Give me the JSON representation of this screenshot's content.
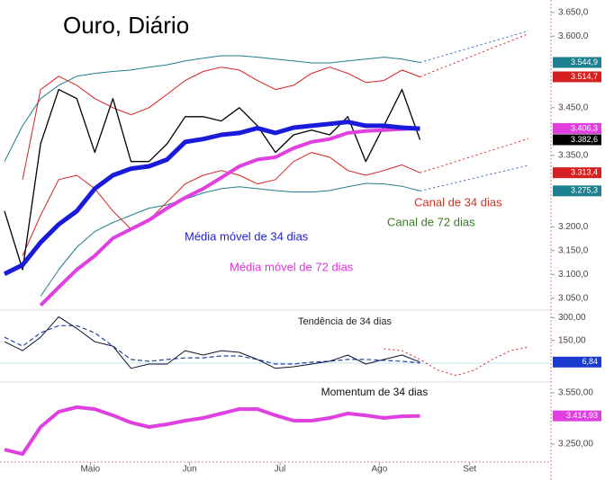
{
  "chart_data": [
    {
      "type": "line",
      "title": "Ouro, Diário",
      "x": [
        0,
        4,
        8,
        12,
        16,
        20,
        24,
        28,
        32,
        36,
        40,
        44,
        48,
        52,
        56,
        60,
        64,
        68,
        72,
        76,
        80,
        84,
        88,
        92,
        96,
        100,
        104,
        108,
        112,
        116
      ],
      "xlim": [
        -1,
        121
      ],
      "ylim": [
        3025,
        3676
      ],
      "yticks": [
        {
          "value": 3650,
          "label": "3.650,0"
        },
        {
          "value": 3600,
          "label": "3.600,0"
        },
        {
          "value": 3450,
          "label": "3.450,0"
        },
        {
          "value": 3350,
          "label": "3.350,0"
        },
        {
          "value": 3200,
          "label": "3.200,0"
        },
        {
          "value": 3150,
          "label": "3.150,0"
        },
        {
          "value": 3100,
          "label": "3.100,0"
        },
        {
          "value": 3050,
          "label": "3.050,0"
        }
      ],
      "series": [
        {
          "color": "#1e7f8e",
          "style": "solid",
          "width": 1,
          "values": [
            3337,
            3412,
            3469,
            3497,
            3516,
            3522,
            3526,
            3529,
            3535,
            3540,
            3548,
            3554,
            3559,
            3559,
            3556,
            3552,
            3548,
            3544,
            3544,
            3548,
            3552,
            3556,
            3552,
            3544.9,
            null,
            null,
            null,
            null,
            null,
            null
          ],
          "last_label": "3.544,9"
        },
        {
          "color": "#1e7f8e",
          "style": "solid",
          "width": 1,
          "values": [
            null,
            null,
            3054,
            3110,
            3157,
            3190,
            3209,
            3224,
            3239,
            3246,
            3258,
            3271,
            3280,
            3284,
            3280,
            3276,
            3273,
            3273,
            3276,
            3284,
            3291,
            3290,
            3285,
            3275.3,
            null,
            null,
            null,
            null,
            null,
            null
          ],
          "last_label": "3.275,3"
        },
        {
          "color": "#d42020",
          "style": "solid",
          "width": 1,
          "values": [
            null,
            3299,
            3488,
            3516,
            3497,
            3469,
            3450,
            3435,
            3450,
            3478,
            3507,
            3526,
            3535,
            3529,
            3507,
            3488,
            3497,
            3522,
            3535,
            3522,
            3503,
            3507,
            3529,
            3514.7,
            null,
            null,
            null,
            null,
            null,
            null
          ],
          "last_label": "3.514,7"
        },
        {
          "color": "#d42020",
          "style": "solid",
          "width": 1,
          "values": [
            null,
            3139,
            3224,
            3299,
            3308,
            3280,
            3233,
            3195,
            3214,
            3252,
            3290,
            3308,
            3318,
            3308,
            3290,
            3299,
            3337,
            3356,
            3346,
            3318,
            3308,
            3318,
            3330,
            3313.4,
            null,
            null,
            null,
            null,
            null,
            null
          ],
          "last_label": "3.313,4"
        },
        {
          "color": "#d42020",
          "style": "dotted",
          "width": 1,
          "values": [
            null,
            null,
            null,
            null,
            null,
            null,
            null,
            null,
            null,
            null,
            null,
            null,
            null,
            null,
            null,
            null,
            null,
            null,
            null,
            null,
            null,
            null,
            null,
            3514.7,
            3530,
            3545,
            3560,
            3575,
            3590,
            3605
          ]
        },
        {
          "color": "#d42020",
          "style": "dotted",
          "width": 1,
          "values": [
            null,
            null,
            null,
            null,
            null,
            null,
            null,
            null,
            null,
            null,
            null,
            null,
            null,
            null,
            null,
            null,
            null,
            null,
            null,
            null,
            null,
            null,
            null,
            3313.4,
            3325,
            3337,
            3349,
            3361,
            3373,
            3385
          ]
        },
        {
          "color": "#3060c0",
          "style": "dotted",
          "width": 1,
          "values": [
            null,
            null,
            null,
            null,
            null,
            null,
            null,
            null,
            null,
            null,
            null,
            null,
            null,
            null,
            null,
            null,
            null,
            null,
            null,
            null,
            null,
            null,
            null,
            3544.9,
            3556,
            3567,
            3578,
            3589,
            3600,
            3611
          ]
        },
        {
          "color": "#3060c0",
          "style": "dotted",
          "width": 1,
          "values": [
            null,
            null,
            null,
            null,
            null,
            null,
            null,
            null,
            null,
            null,
            null,
            null,
            null,
            null,
            null,
            null,
            null,
            null,
            null,
            null,
            null,
            null,
            null,
            3275.3,
            3284,
            3293,
            3302,
            3311,
            3320,
            3329
          ]
        },
        {
          "color": "#000000",
          "style": "solid",
          "width": 1.3,
          "values": [
            3233,
            3110,
            3374,
            3488,
            3469,
            3356,
            3469,
            3337,
            3337,
            3374,
            3431,
            3431,
            3422,
            3450,
            3412,
            3356,
            3393,
            3403,
            3393,
            3431,
            3337,
            3412,
            3488,
            3382.6,
            null,
            null,
            null,
            null,
            null,
            null
          ],
          "last_label": "3.382,6"
        },
        {
          "color": "#e040e0",
          "style": "solid",
          "width": 4,
          "values": [
            null,
            null,
            3035,
            3073,
            3110,
            3139,
            3176,
            3195,
            3214,
            3239,
            3261,
            3280,
            3303,
            3327,
            3341,
            3346,
            3365,
            3378,
            3384,
            3397,
            3401,
            3403,
            3405,
            3406.3,
            null,
            null,
            null,
            null,
            null,
            null
          ],
          "last_label": "3.406,3"
        },
        {
          "color": "#1a1adb",
          "style": "solid",
          "width": 5,
          "values": [
            3101,
            3120,
            3167,
            3205,
            3233,
            3280,
            3308,
            3322,
            3327,
            3341,
            3378,
            3384,
            3393,
            3397,
            3407,
            3397,
            3408,
            3412,
            3416,
            3420,
            3412,
            3412,
            3408,
            3406,
            null,
            null,
            null,
            null,
            null,
            null
          ]
        }
      ],
      "annotations": [
        {
          "text": "Canal de 34 dias",
          "color": "#d03020"
        },
        {
          "text": "Canal de 72 dias",
          "color": "#3a7a2a"
        },
        {
          "text": "Média móvel de 34 dias",
          "color": "#2222cc"
        },
        {
          "text": "Média móvel de 72 dias",
          "color": "#dd33dd"
        }
      ]
    },
    {
      "type": "line",
      "x": [
        0,
        4,
        8,
        12,
        16,
        20,
        24,
        28,
        32,
        36,
        40,
        44,
        48,
        52,
        56,
        60,
        64,
        68,
        72,
        76,
        80,
        84,
        88,
        92,
        96,
        100,
        104,
        108,
        112,
        116
      ],
      "xlim": [
        -1,
        121
      ],
      "ylim": [
        -125,
        350
      ],
      "yticks": [
        {
          "value": 300,
          "label": "300,00"
        },
        {
          "value": 150,
          "label": "150,00"
        }
      ],
      "series": [
        {
          "color": "#2244aa",
          "style": "dashed",
          "width": 1.2,
          "values": [
            171,
            112,
            200,
            247,
            247,
            200,
            112,
            24,
            12,
            24,
            35,
            35,
            47,
            47,
            24,
            -6,
            -6,
            6,
            12,
            24,
            24,
            18,
            12,
            0,
            null,
            null,
            null,
            null,
            null,
            null
          ]
        },
        {
          "color": "#d42020",
          "style": "dotted",
          "width": 1,
          "values": [
            null,
            null,
            null,
            null,
            null,
            null,
            null,
            null,
            null,
            null,
            null,
            null,
            null,
            null,
            null,
            null,
            null,
            null,
            null,
            null,
            null,
            94,
            82,
            24,
            -47,
            -82,
            -47,
            24,
            82,
            106
          ]
        },
        {
          "color": "#111133",
          "style": "solid",
          "width": 1,
          "values": [
            141,
            82,
            171,
            306,
            229,
            141,
            112,
            -35,
            -6,
            -6,
            82,
            53,
            82,
            71,
            24,
            -35,
            -24,
            -6,
            12,
            53,
            -6,
            24,
            53,
            6.84,
            null,
            null,
            null,
            null,
            null,
            null
          ],
          "last_label": "6,84",
          "box_color": "#1a3ad0"
        }
      ],
      "annotations": [
        {
          "text": "Tendência de 34 dias",
          "color": "#222222"
        }
      ]
    },
    {
      "type": "line",
      "x": [
        0,
        4,
        8,
        12,
        16,
        20,
        24,
        28,
        32,
        36,
        40,
        44,
        48,
        52,
        56,
        60,
        64,
        68,
        72,
        76,
        80,
        84,
        88,
        92,
        96,
        100,
        104,
        108,
        112,
        116
      ],
      "xlim": [
        -1,
        121
      ],
      "ylim": [
        3140,
        3613
      ],
      "yticks": [
        {
          "value": 3550,
          "label": "3.550,00"
        },
        {
          "value": 3250,
          "label": "3.250,00"
        }
      ],
      "xticks": [
        {
          "value": 19,
          "label": "Maio"
        },
        {
          "value": 41,
          "label": "Jun"
        },
        {
          "value": 61,
          "label": "Jul"
        },
        {
          "value": 83,
          "label": "Ago"
        },
        {
          "value": 103,
          "label": "Set"
        }
      ],
      "series": [
        {
          "color": "#e040e0",
          "style": "solid",
          "width": 4,
          "values": [
            3218,
            3192,
            3350,
            3439,
            3466,
            3455,
            3418,
            3376,
            3350,
            3366,
            3387,
            3403,
            3429,
            3455,
            3455,
            3418,
            3387,
            3387,
            3403,
            3429,
            3418,
            3403,
            3413,
            3414.93,
            null,
            null,
            null,
            null,
            null,
            null
          ],
          "last_label": "3.414,93"
        }
      ],
      "annotations": [
        {
          "text": "Momentum de 34 dias",
          "color": "#111111"
        }
      ]
    }
  ]
}
